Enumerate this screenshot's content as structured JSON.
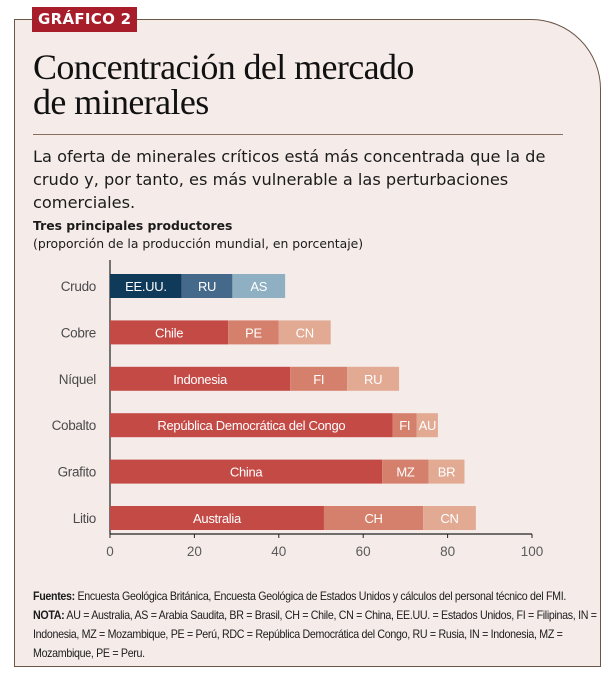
{
  "badge": "GRÁFICO 2",
  "title_line1": "Concentración del mercado",
  "title_line2": "de minerales",
  "subtitle": "La oferta de minerales críticos está más concentrada que la de crudo y, por tanto, es más vulnerable a las perturbaciones comerciales.",
  "chart_title": "Tres principales productores",
  "chart_unit": "(proporción de la producción mundial, en porcentaje)",
  "sources_label": "Fuentes:",
  "sources_text": " Encuesta Geológica Británica, Encuesta Geológica de Estados Unidos y cálculos del personal técnico del FMI.",
  "note_label": "NOTA:",
  "note_text": " AU = Australia, AS = Arabia Saudita, BR = Brasil, CH = Chile, CN = China, EE.UU. = Estados Unidos, FI = Filipinas, IN = Indonesia, MZ = Mozambique, PE = Perú, RDC = República Democrática del Congo, RU = Rusia, IN = Indonesia, MZ = Mozambique, PE =  Peru.",
  "colors": {
    "oil": [
      "#0f3a5a",
      "#45698b",
      "#8eb0c2"
    ],
    "mineral": [
      "#c44a46",
      "#d5806c",
      "#e2aa93"
    ],
    "axis": "#222222",
    "tick_label": "#5a5a5a",
    "category_label": "#4a4a4a",
    "bar_text": "#ffffff"
  },
  "chart_data": {
    "type": "bar",
    "orientation": "horizontal",
    "stacked": true,
    "title": "Tres principales productores",
    "subtitle": "(proporción de la producción mundial, en porcentaje)",
    "xlabel": "",
    "ylabel": "",
    "xlim": [
      0,
      100
    ],
    "xticks": [
      0,
      20,
      40,
      60,
      80,
      100
    ],
    "grid": false,
    "categories": [
      "Crudo",
      "Cobre",
      "Níquel",
      "Cobalto",
      "Grafito",
      "Litio"
    ],
    "bars": [
      {
        "category": "Crudo",
        "palette": "oil",
        "segments": [
          {
            "label": "EE.UU.",
            "value": 17
          },
          {
            "label": "RU",
            "value": 12
          },
          {
            "label": "AS",
            "value": 12.5
          }
        ]
      },
      {
        "category": "Cobre",
        "palette": "mineral",
        "segments": [
          {
            "label": "Chile",
            "value": 28
          },
          {
            "label": "PE",
            "value": 12
          },
          {
            "label": "CN",
            "value": 12.3
          }
        ]
      },
      {
        "category": "Níquel",
        "palette": "mineral",
        "segments": [
          {
            "label": "Indonesia",
            "value": 42.7
          },
          {
            "label": "FI",
            "value": 13.5
          },
          {
            "label": "RU",
            "value": 12.3
          }
        ]
      },
      {
        "category": "Cobalto",
        "palette": "mineral",
        "segments": [
          {
            "label": "República Democrática del Congo",
            "value": 67
          },
          {
            "label": "FI",
            "value": 5.7
          },
          {
            "label": "AU",
            "value": 5
          }
        ]
      },
      {
        "category": "Grafito",
        "palette": "mineral",
        "segments": [
          {
            "label": "China",
            "value": 64.5
          },
          {
            "label": "MZ",
            "value": 11
          },
          {
            "label": "BR",
            "value": 8.5
          }
        ]
      },
      {
        "category": "Litio",
        "palette": "mineral",
        "segments": [
          {
            "label": "Australia",
            "value": 50.7
          },
          {
            "label": "CH",
            "value": 23.5
          },
          {
            "label": "CN",
            "value": 12.5
          }
        ]
      }
    ]
  }
}
